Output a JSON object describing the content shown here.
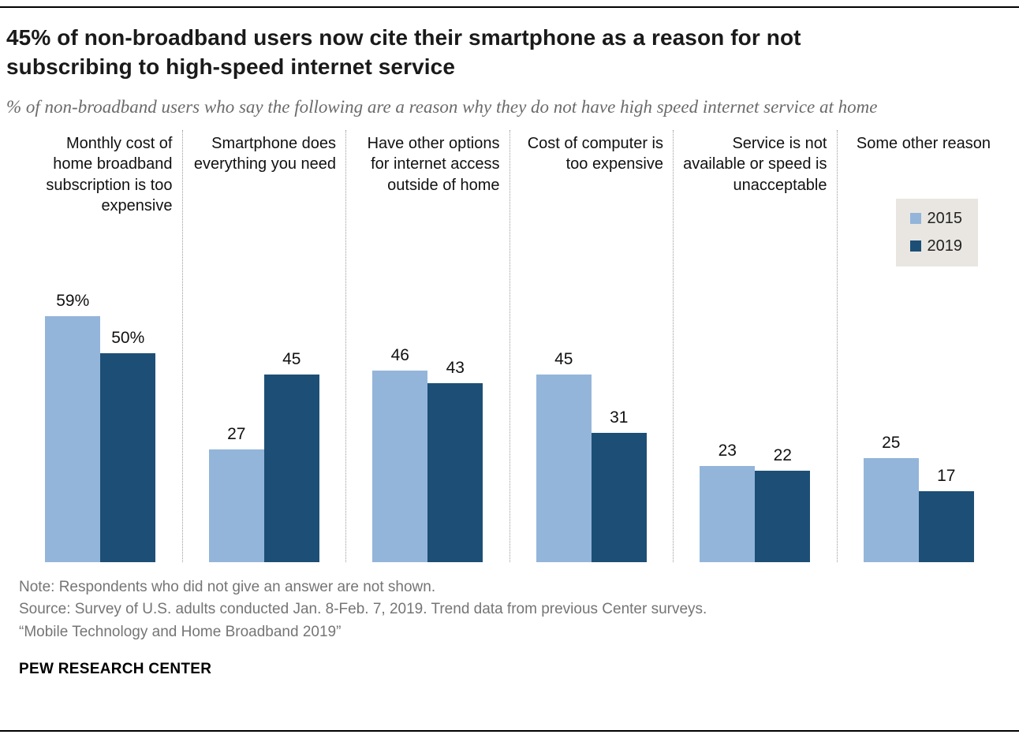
{
  "header": {
    "title": "45% of non-broadband users now cite their smartphone as a reason for not subscribing to high-speed internet service",
    "subtitle": "% of non-broadband users who say the following are a reason why they do not have high speed internet service at home"
  },
  "chart_data": {
    "type": "bar",
    "categories": [
      "Monthly cost of home broadband subscription is too expensive",
      "Smartphone does everything you need",
      "Have other options for internet access outside of home",
      "Cost of computer is too expensive",
      "Service is not available or speed is unacceptable",
      "Some other reason"
    ],
    "series": [
      {
        "name": "2015",
        "color": "#94b5da",
        "values": [
          59,
          27,
          46,
          45,
          23,
          25
        ],
        "labels": [
          "59%",
          "27",
          "46",
          "45",
          "23",
          "25"
        ]
      },
      {
        "name": "2019",
        "color": "#1d4f76",
        "values": [
          50,
          45,
          43,
          31,
          22,
          17
        ],
        "labels": [
          "50%",
          "45",
          "43",
          "31",
          "22",
          "17"
        ]
      }
    ],
    "ylim": [
      0,
      62
    ],
    "xlabel": "",
    "ylabel": "",
    "grid": false,
    "legend_position": "top-right"
  },
  "footer": {
    "note": "Note: Respondents who did not give an answer are not shown.",
    "source": "Source: Survey of U.S. adults conducted Jan. 8-Feb. 7, 2019. Trend data from previous Center surveys.",
    "report": "“Mobile Technology and Home Broadband 2019”",
    "brand": "PEW RESEARCH CENTER"
  }
}
